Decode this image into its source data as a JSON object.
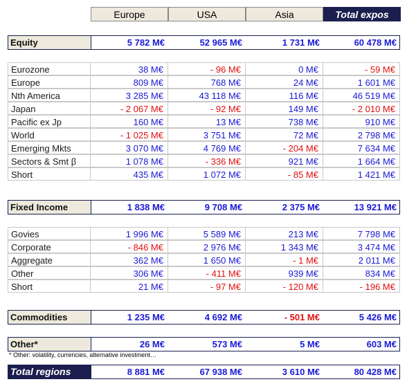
{
  "headers": [
    "Europe",
    "USA",
    "Asia",
    "Total expos"
  ],
  "equity": {
    "label": "Equity",
    "values": [
      "5 782 M€",
      "52 965 M€",
      "1 731 M€",
      "60 478 M€"
    ],
    "rows": [
      {
        "label": "Eurozone",
        "values": [
          "38 M€",
          "- 96 M€",
          "0 M€",
          "- 59 M€"
        ]
      },
      {
        "label": "Europe",
        "values": [
          "809 M€",
          "768 M€",
          "24 M€",
          "1 601 M€"
        ]
      },
      {
        "label": "Nth America",
        "values": [
          "3 285 M€",
          "43 118 M€",
          "116 M€",
          "46 519 M€"
        ]
      },
      {
        "label": "Japan",
        "values": [
          "- 2 067 M€",
          "- 92 M€",
          "149 M€",
          "- 2 010 M€"
        ]
      },
      {
        "label": "Pacific ex Jp",
        "values": [
          "160 M€",
          "13 M€",
          "738 M€",
          "910 M€"
        ]
      },
      {
        "label": "World",
        "values": [
          "- 1 025 M€",
          "3 751 M€",
          "72 M€",
          "2 798 M€"
        ]
      },
      {
        "label": "Emerging Mkts",
        "values": [
          "3 070 M€",
          "4 769 M€",
          "- 204 M€",
          "7 634 M€"
        ]
      },
      {
        "label": "Sectors & Smt β",
        "values": [
          "1 078 M€",
          "- 336 M€",
          "921 M€",
          "1 664 M€"
        ]
      },
      {
        "label": "Short",
        "values": [
          "435 M€",
          "1 072 M€",
          "- 85 M€",
          "1 421 M€"
        ]
      }
    ]
  },
  "fixed_income": {
    "label": "Fixed Income",
    "values": [
      "1 838 M€",
      "9 708 M€",
      "2 375 M€",
      "13 921 M€"
    ],
    "rows": [
      {
        "label": "Govies",
        "values": [
          "1 996 M€",
          "5 589 M€",
          "213 M€",
          "7 798 M€"
        ]
      },
      {
        "label": "Corporate",
        "values": [
          "- 846 M€",
          "2 976 M€",
          "1 343 M€",
          "3 474 M€"
        ]
      },
      {
        "label": "Aggregate",
        "values": [
          "362 M€",
          "1 650 M€",
          "- 1 M€",
          "2 011 M€"
        ]
      },
      {
        "label": "Other",
        "values": [
          "306 M€",
          "- 411 M€",
          "939 M€",
          "834 M€"
        ]
      },
      {
        "label": "Short",
        "values": [
          "21 M€",
          "- 97 M€",
          "- 120 M€",
          "- 196 M€"
        ]
      }
    ]
  },
  "commodities": {
    "label": "Commodities",
    "values": [
      "1 235 M€",
      "4 692 M€",
      "- 501 M€",
      "5 426 M€"
    ]
  },
  "other": {
    "label": "Other*",
    "values": [
      "26 M€",
      "573 M€",
      "5 M€",
      "603 M€"
    ]
  },
  "footnote": "* Other: volatility, currencies, alternative investment…",
  "total": {
    "label": "Total regions",
    "values": [
      "8 881 M€",
      "67 938 M€",
      "3 610 M€",
      "80 428 M€"
    ]
  }
}
